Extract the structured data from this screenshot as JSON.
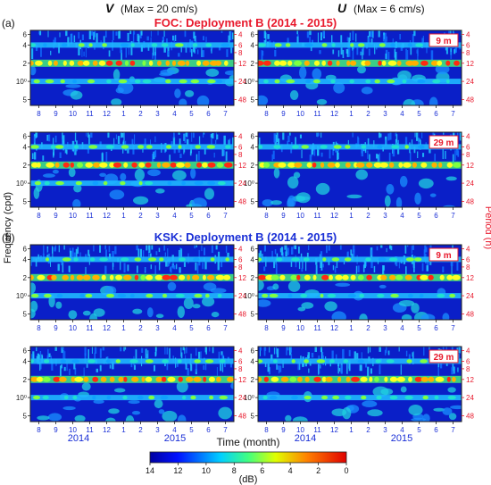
{
  "column_headers": [
    {
      "symbol": "V",
      "text": "(Max = 20 cm/s)"
    },
    {
      "symbol": "U",
      "text": "(Max = 6 cm/s)"
    }
  ],
  "sections": [
    {
      "label": "(a)",
      "title": "FOC: Deployment B (2014 - 2015)",
      "title_color": "#e8192c"
    },
    {
      "label": "(b)",
      "title": "KSK: Deployment B (2014 - 2015)",
      "title_color": "#1a2fd6"
    }
  ],
  "depth_badges": [
    "9 m",
    "29 m",
    "9 m",
    "29 m"
  ],
  "left_axis": {
    "label": "Frequency (cpd)",
    "ticks": [
      {
        "v": 6,
        "t": "6"
      },
      {
        "v": 4,
        "t": "4"
      },
      {
        "v": 2,
        "t": "2"
      },
      {
        "v": 1,
        "t": "10⁰"
      },
      {
        "v": 0.5,
        "t": "5"
      }
    ]
  },
  "right_axis": {
    "label": "Period (h)",
    "ticks": [
      {
        "v": 6,
        "t": "4"
      },
      {
        "v": 4,
        "t": "6"
      },
      {
        "v": 3,
        "t": "8"
      },
      {
        "v": 2,
        "t": "12"
      },
      {
        "v": 1,
        "t": "24"
      },
      {
        "v": 0.5,
        "t": "48"
      }
    ]
  },
  "month_ticks": [
    "8",
    "9",
    "10",
    "11",
    "12",
    "1",
    "2",
    "3",
    "4",
    "5",
    "6",
    "7"
  ],
  "year_labels": [
    "2014",
    "2015"
  ],
  "x_axis_label": "Time (month)",
  "colorbar": {
    "label": "(dB)",
    "ticks": [
      "14",
      "12",
      "10",
      "8",
      "6",
      "4",
      "2",
      "0"
    ],
    "range": [
      14,
      0
    ]
  },
  "colors": {
    "background_field": "#0a1fc8",
    "frame": "#1f1f1f",
    "axis_left": "#222222",
    "axis_right": "#e8192c",
    "year_text": "#1a2fd6",
    "badge_border": "#e8192c",
    "badge_text": "#e8192c"
  },
  "chart_data": {
    "type": "heatmap",
    "title": "",
    "xlabel": "Time (month)",
    "ylabel": "Frequency (cpd)",
    "ylabel_right": "Period (h)",
    "y_scale": "log",
    "x_months": [
      "8",
      "9",
      "10",
      "11",
      "12",
      "1",
      "2",
      "3",
      "4",
      "5",
      "6",
      "7"
    ],
    "x_years": [
      "2014",
      "2015"
    ],
    "ylim_cpd": [
      0.4,
      7
    ],
    "colorbar_db": [
      14,
      0
    ],
    "panels": [
      {
        "section": "FOC",
        "component": "V",
        "depth": "9 m",
        "peaks_cpd": [
          1,
          2,
          4
        ],
        "dominant_cpd": 2
      },
      {
        "section": "FOC",
        "component": "U",
        "depth": "9 m",
        "peaks_cpd": [
          1,
          2,
          4
        ],
        "dominant_cpd": 2
      },
      {
        "section": "FOC",
        "component": "V",
        "depth": "29 m",
        "peaks_cpd": [
          1,
          2,
          4
        ],
        "dominant_cpd": 2
      },
      {
        "section": "FOC",
        "component": "U",
        "depth": "29 m",
        "peaks_cpd": [
          2,
          4
        ],
        "dominant_cpd": 2
      },
      {
        "section": "KSK",
        "component": "V",
        "depth": "9 m",
        "peaks_cpd": [
          1,
          2,
          4
        ],
        "dominant_cpd": 2
      },
      {
        "section": "KSK",
        "component": "U",
        "depth": "9 m",
        "peaks_cpd": [
          1,
          2,
          4
        ],
        "dominant_cpd": 2
      },
      {
        "section": "KSK",
        "component": "V",
        "depth": "29 m",
        "peaks_cpd": [
          1,
          2,
          4
        ],
        "dominant_cpd": 2
      },
      {
        "section": "KSK",
        "component": "U",
        "depth": "29 m",
        "peaks_cpd": [
          1,
          2,
          4
        ],
        "dominant_cpd": 2
      }
    ]
  }
}
